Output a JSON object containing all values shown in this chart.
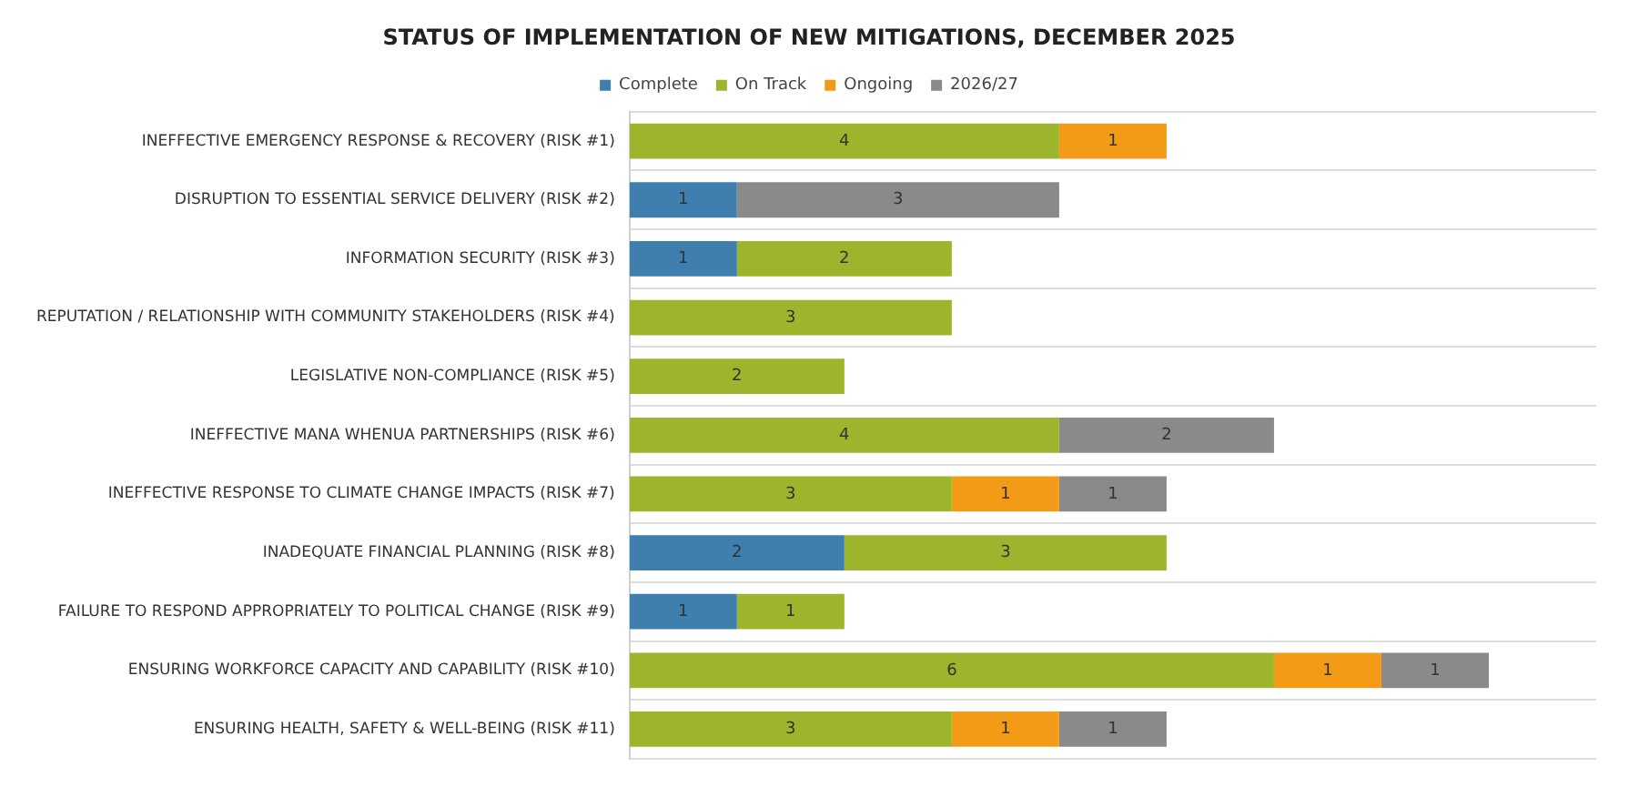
{
  "chart_data": {
    "type": "bar",
    "orientation": "horizontal",
    "stacked": true,
    "title": "STATUS OF IMPLEMENTATION OF NEW MITIGATIONS, DECEMBER 2025",
    "categories": [
      "INEFFECTIVE EMERGENCY RESPONSE & RECOVERY (RISK #1)",
      "DISRUPTION TO ESSENTIAL SERVICE DELIVERY (RISK #2)",
      "INFORMATION SECURITY (RISK #3)",
      "REPUTATION / RELATIONSHIP WITH COMMUNITY STAKEHOLDERS (RISK #4)",
      "LEGISLATIVE NON-COMPLIANCE (RISK #5)",
      "INEFFECTIVE MANA WHENUA PARTNERSHIPS (RISK #6)",
      "INEFFECTIVE RESPONSE TO CLIMATE CHANGE IMPACTS (RISK #7)",
      "INADEQUATE FINANCIAL PLANNING (RISK #8)",
      "FAILURE TO RESPOND APPROPRIATELY TO POLITICAL CHANGE (RISK #9)",
      "ENSURING WORKFORCE CAPACITY AND CAPABILITY (RISK #10)",
      "ENSURING HEALTH, SAFETY & WELL-BEING (RISK #11)"
    ],
    "series": [
      {
        "name": "Complete",
        "color": "#3f7fae",
        "values": [
          null,
          1,
          1,
          null,
          null,
          null,
          null,
          2,
          1,
          null,
          null
        ]
      },
      {
        "name": "On Track",
        "color": "#9db52c",
        "values": [
          4,
          null,
          2,
          3,
          2,
          4,
          3,
          3,
          1,
          6,
          3
        ]
      },
      {
        "name": "Ongoing",
        "color": "#f39a16",
        "values": [
          1,
          null,
          null,
          null,
          null,
          null,
          1,
          null,
          null,
          1,
          1
        ]
      },
      {
        "name": "2026/27",
        "color": "#8a8a8a",
        "values": [
          null,
          3,
          null,
          null,
          null,
          2,
          1,
          null,
          null,
          1,
          1
        ]
      }
    ],
    "xlim": [
      0,
      9
    ],
    "tick_labels": "y",
    "grid": "y",
    "legend": "top",
    "data_labels": true
  }
}
